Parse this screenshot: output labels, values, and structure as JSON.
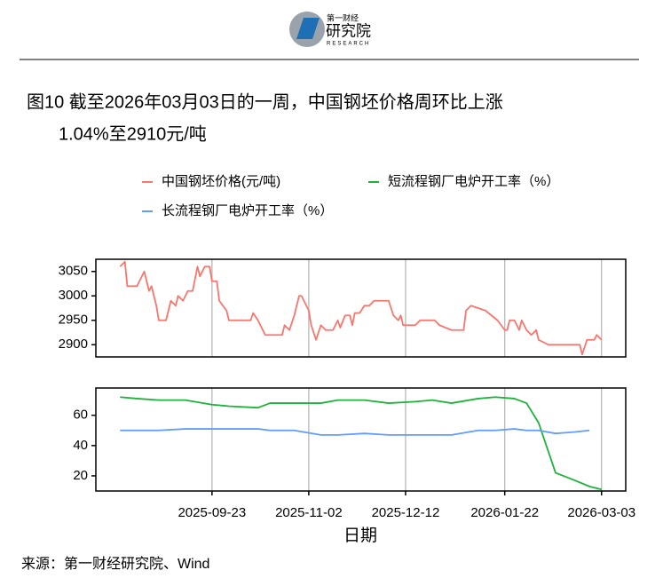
{
  "header": {
    "brand": "第一财经",
    "name": "研究院",
    "sub": "RESEARCH"
  },
  "caption": [
    "图10  截至2026年03月03日的一周，中国钢坯价格周环比上涨",
    "1.04%至2910元/吨"
  ],
  "source": "来源：第一财经研究院、Wind",
  "chart_data": [
    {
      "type": "line",
      "grid": "x",
      "xlim": [
        "2025-08-06",
        "2026-03-13"
      ],
      "ylim": [
        2875,
        3075
      ],
      "yticks": [
        2900,
        2950,
        3000,
        3050
      ],
      "x": [
        "2025-08-16",
        "2025-08-18",
        "2025-08-19",
        "2025-08-23",
        "2025-08-25",
        "2025-08-26",
        "2025-08-28",
        "2025-08-29",
        "2025-08-31",
        "2025-09-01",
        "2025-09-04",
        "2025-09-06",
        "2025-09-08",
        "2025-09-09",
        "2025-09-11",
        "2025-09-13",
        "2025-09-15",
        "2025-09-17",
        "2025-09-18",
        "2025-09-20",
        "2025-09-22",
        "2025-09-23",
        "2025-09-25",
        "2025-09-26",
        "2025-09-29",
        "2025-09-30",
        "2025-10-09",
        "2025-10-10",
        "2025-10-12",
        "2025-10-15",
        "2025-10-22",
        "2025-10-23",
        "2025-10-25",
        "2025-10-27",
        "2025-10-29",
        "2025-10-30",
        "2025-11-02",
        "2025-11-03",
        "2025-11-05",
        "2025-11-07",
        "2025-11-09",
        "2025-11-12",
        "2025-11-14",
        "2025-11-15",
        "2025-11-17",
        "2025-11-19",
        "2025-11-20",
        "2025-11-21",
        "2025-11-23",
        "2025-11-25",
        "2025-11-27",
        "2025-11-29",
        "2025-12-05",
        "2025-12-07",
        "2025-12-09",
        "2025-12-10",
        "2025-12-11",
        "2025-12-16",
        "2025-12-18",
        "2025-12-24",
        "2025-12-26",
        "2025-12-31",
        "2026-01-05",
        "2026-01-06",
        "2026-01-08",
        "2026-01-14",
        "2026-01-19",
        "2026-01-22",
        "2026-01-23",
        "2026-01-24",
        "2026-01-26",
        "2026-01-28",
        "2026-01-29",
        "2026-01-31",
        "2026-02-02",
        "2026-02-04",
        "2026-02-05",
        "2026-02-09",
        "2026-02-22",
        "2026-02-23",
        "2026-02-25",
        "2026-02-28",
        "2026-03-01",
        "2026-03-03"
      ],
      "series": [
        {
          "name": "中国钢坯价格(元/吨)",
          "color": "#F8766D",
          "values": [
            3060,
            3070,
            3020,
            3020,
            3040,
            3050,
            3010,
            3020,
            2980,
            2950,
            2950,
            2990,
            2980,
            3000,
            2990,
            3010,
            3010,
            3060,
            3040,
            3060,
            3060,
            3030,
            3030,
            2990,
            2970,
            2950,
            2950,
            2965,
            2950,
            2920,
            2920,
            2940,
            2930,
            2960,
            3000,
            3000,
            2970,
            2940,
            2910,
            2940,
            2930,
            2930,
            2950,
            2935,
            2960,
            2960,
            2940,
            2965,
            2965,
            2980,
            2980,
            2990,
            2990,
            2960,
            2950,
            2960,
            2940,
            2940,
            2950,
            2950,
            2940,
            2930,
            2930,
            2970,
            2980,
            2970,
            2950,
            2930,
            2930,
            2950,
            2950,
            2930,
            2950,
            2930,
            2920,
            2930,
            2910,
            2900,
            2900,
            2880,
            2910,
            2910,
            2920,
            2910
          ]
        }
      ]
    },
    {
      "type": "line",
      "grid": "x",
      "xlabel": "日期",
      "xlim": [
        "2025-08-06",
        "2026-03-13"
      ],
      "xticks": [
        "2025-09-23",
        "2025-11-02",
        "2025-12-12",
        "2026-01-22",
        "2026-03-03"
      ],
      "ylim": [
        10,
        78
      ],
      "yticks": [
        20,
        40,
        60
      ],
      "x": [
        "2025-08-16",
        "2025-08-23",
        "2025-09-01",
        "2025-09-12",
        "2025-09-23",
        "2025-09-30",
        "2025-10-12",
        "2025-10-17",
        "2025-10-27",
        "2025-11-07",
        "2025-11-14",
        "2025-11-25",
        "2025-12-05",
        "2025-12-16",
        "2025-12-23",
        "2025-12-31",
        "2026-01-11",
        "2026-01-18",
        "2026-01-26",
        "2026-01-31",
        "2026-02-05",
        "2026-02-12",
        "2026-02-20",
        "2026-02-26",
        "2026-03-03"
      ],
      "series": [
        {
          "name": "短流程钢厂电炉开工率（%）",
          "color": "#1DB33A",
          "values": [
            72,
            71,
            70,
            70,
            67,
            66,
            65,
            68,
            68,
            68,
            70,
            70,
            68,
            69,
            70,
            68,
            71,
            72,
            71,
            68,
            55,
            22,
            17,
            13,
            11
          ]
        },
        {
          "name": "长流程钢厂电炉开工率（%）",
          "color": "#619CFF",
          "values": [
            50,
            50,
            50,
            51,
            51,
            51,
            51,
            50,
            50,
            47,
            47,
            48,
            47,
            47,
            47,
            47,
            50,
            50,
            51,
            50,
            50,
            48,
            49,
            50,
            null
          ]
        }
      ]
    }
  ]
}
